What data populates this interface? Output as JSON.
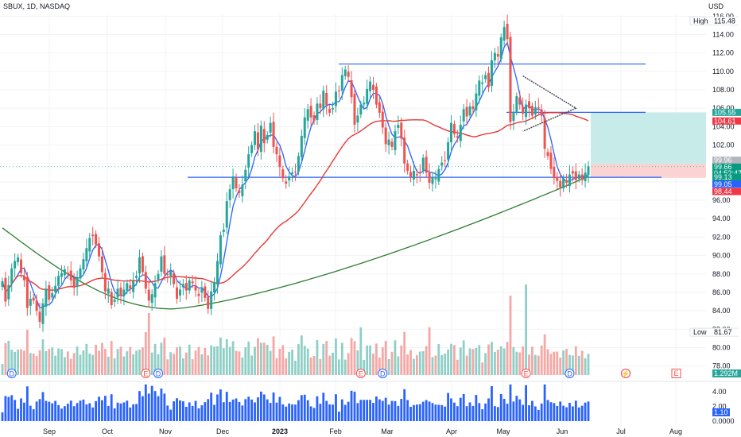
{
  "symbol_label": "SBUX, 1D, NASDAQ",
  "currency_label": "USD",
  "colors": {
    "up": "#26a69a",
    "down": "#ef5350",
    "ma_fast": "#2962ff",
    "ma_mid": "#e53935",
    "ma_slow": "#2e7d32",
    "vol_up": "#8fcfc6",
    "vol_down": "#f4a7a5",
    "osc": "#2962ff",
    "target_zone": "#c6ebe8",
    "stop_zone": "#fbd3d3"
  },
  "chart_data": {
    "type": "candlestick",
    "x_ticks": [
      "Sep",
      "Oct",
      "Nov",
      "Dec",
      "2023",
      "Feb",
      "Mar",
      "Apr",
      "May",
      "Jun",
      "Jul",
      "Aug"
    ],
    "y_ticks": [
      "116.00",
      "114.00",
      "112.00",
      "110.00",
      "108.00",
      "106.00",
      "104.00",
      "102.00",
      "100.00",
      "98.00",
      "96.00",
      "94.00",
      "92.00",
      "90.00",
      "88.00",
      "86.00",
      "84.00",
      "82.00",
      "80.00",
      "78.00"
    ],
    "ylim": [
      76.5,
      116.2
    ],
    "closes": [
      87.2,
      85.0,
      86.8,
      88.6,
      89.4,
      89.8,
      88.1,
      87.3,
      84.3,
      85.3,
      85.1,
      84.0,
      82.8,
      84.8,
      86.4,
      85.2,
      85.9,
      86.7,
      87.8,
      88.1,
      88.5,
      88.0,
      87.3,
      86.5,
      87.5,
      88.6,
      89.6,
      90.8,
      91.9,
      92.1,
      91.2,
      89.9,
      88.2,
      86.1,
      86.4,
      84.6,
      85.2,
      86.4,
      85.6,
      86.3,
      87.0,
      86.4,
      87.2,
      87.8,
      89.8,
      88.2,
      86.4,
      85.1,
      85.8,
      87.0,
      88.0,
      89.9,
      88.0,
      87.9,
      88.3,
      86.9,
      85.3,
      86.3,
      86.9,
      86.2,
      87.3,
      87.0,
      86.2,
      85.6,
      86.4,
      85.4,
      84.2,
      86.1,
      87.1,
      89.4,
      92.2,
      92.8,
      95.9,
      97.2,
      98.6,
      97.3,
      96.8,
      97.7,
      99.3,
      101.0,
      102.0,
      103.5,
      101.5,
      104.1,
      102.2,
      103.1,
      104.4,
      101.8,
      101.0,
      99.6,
      98.4,
      97.8,
      98.6,
      99.0,
      99.1,
      100.8,
      103.0,
      105.0,
      105.9,
      105.0,
      104.6,
      106.5,
      106.0,
      107.9,
      106.3,
      105.5,
      106.0,
      107.8,
      107.9,
      109.6,
      110.2,
      109.4,
      107.2,
      104.2,
      105.2,
      106.4,
      106.6,
      108.1,
      108.9,
      108.0,
      106.4,
      105.5,
      103.9,
      102.1,
      102.6,
      101.8,
      103.5,
      104.2,
      102.7,
      100.0,
      99.2,
      98.5,
      99.2,
      98.7,
      99.0,
      100.6,
      99.0,
      97.9,
      98.5,
      98.4,
      99.4,
      100.1,
      100.3,
      102.3,
      104.4,
      103.2,
      102.8,
      104.2,
      105.9,
      105.1,
      106.2,
      105.9,
      107.6,
      109.0,
      108.8,
      109.6,
      108.3,
      111.2,
      112.0,
      111.6,
      113.7,
      114.8,
      113.5,
      104.5,
      105.6,
      107.3,
      106.4,
      105.4,
      106.4,
      106.0,
      105.2,
      106.1,
      106.0,
      105.2,
      101.6,
      100.8,
      99.4,
      98.4,
      98.1,
      97.4,
      98.4,
      97.9,
      98.8,
      98.9,
      98.2,
      98.8,
      98.2,
      99.0,
      99.7
    ],
    "current_price": 99.66,
    "hlines": [
      {
        "price": 110.8,
        "x_from": "Feb",
        "x_to": "Jul"
      },
      {
        "price": 105.55,
        "x_from": "May",
        "x_to": "Jul"
      },
      {
        "price": 98.5,
        "x_from": "Nov",
        "x_to": "Jul"
      }
    ],
    "position": {
      "entry": 99.96,
      "target": 105.55,
      "stop": 98.44
    },
    "price_tags": [
      {
        "label": "High",
        "value": "115.48",
        "price": 115.48,
        "style": "plain"
      },
      {
        "value": "105.55",
        "price": 105.55,
        "style": "teal"
      },
      {
        "value": "104.61",
        "price": 104.61,
        "style": "red"
      },
      {
        "value": "99.96",
        "price": 100.35,
        "style": "gray"
      },
      {
        "value": "99.66",
        "sub": "04:52:47",
        "price": 99.3,
        "style": "green"
      },
      {
        "value": "99.13",
        "price": 98.5,
        "style": "green"
      },
      {
        "value": "99.05",
        "price": 97.75,
        "style": "blue"
      },
      {
        "value": "98.44",
        "price": 96.95,
        "style": "red"
      },
      {
        "label": "Low",
        "value": "81.67",
        "price": 81.67,
        "style": "plain"
      }
    ],
    "volume_tag": "1.292M",
    "osc_ticks": [
      "4.00",
      "2.00",
      "0.0000"
    ],
    "osc_ylim": [
      0,
      5.2
    ],
    "osc_tag": "1.10",
    "events": [
      {
        "label": "D",
        "index": 3
      },
      {
        "label": "E",
        "index": 46
      },
      {
        "label": "D",
        "index": 50
      },
      {
        "label": "E",
        "index": 115
      },
      {
        "label": "D",
        "index": 122
      },
      {
        "label": "E",
        "index": 168
      },
      {
        "label": "D",
        "index": 182
      },
      {
        "label": "⚡",
        "index": 200
      }
    ],
    "future_event": {
      "label": "E"
    }
  }
}
